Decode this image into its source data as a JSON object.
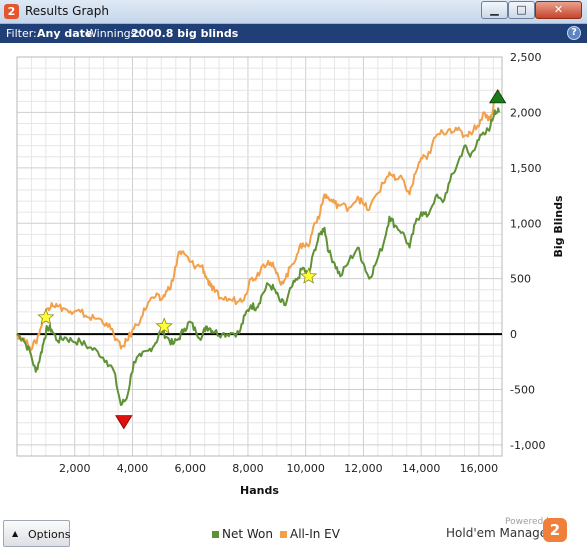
{
  "window": {
    "title": "Results Graph",
    "minimize_glyph": "▁",
    "maximize_glyph": "□",
    "close_glyph": "✕",
    "app_icon_glyph": "2"
  },
  "filter_bar": {
    "filter_label": "Filter:",
    "filter_value": "Any date",
    "winnings_label": "Winnings:",
    "winnings_value": "2000.8 big blinds",
    "help_glyph": "?"
  },
  "chart_data": {
    "type": "line",
    "xlabel": "Hands",
    "ylabel": "Big Blinds",
    "xlim": [
      0,
      16800
    ],
    "ylim": [
      -1100,
      2500
    ],
    "x_ticks": [
      2000,
      4000,
      6000,
      8000,
      10000,
      12000,
      14000,
      16000
    ],
    "x_tick_labels": [
      "2,000",
      "4,000",
      "6,000",
      "8,000",
      "10,000",
      "12,000",
      "14,000",
      "16,000"
    ],
    "y_ticks": [
      -1000,
      -500,
      0,
      500,
      1000,
      1500,
      2000,
      2500
    ],
    "y_tick_labels": [
      "-1,000",
      "-500",
      "0",
      "500",
      "1,000",
      "1,500",
      "2,000",
      "2,500"
    ],
    "grid": true,
    "legend_position": "bottom-center",
    "series": [
      {
        "name": "Net Won",
        "color": "#5f9135",
        "points": [
          [
            0,
            0
          ],
          [
            200,
            -40
          ],
          [
            450,
            -160
          ],
          [
            650,
            -340
          ],
          [
            800,
            -210
          ],
          [
            950,
            -40
          ],
          [
            1050,
            60
          ],
          [
            1200,
            40
          ],
          [
            1400,
            -60
          ],
          [
            1650,
            -30
          ],
          [
            1900,
            -60
          ],
          [
            2200,
            -70
          ],
          [
            2500,
            -120
          ],
          [
            2800,
            -160
          ],
          [
            3100,
            -240
          ],
          [
            3350,
            -330
          ],
          [
            3600,
            -640
          ],
          [
            3800,
            -580
          ],
          [
            4050,
            -250
          ],
          [
            4300,
            -200
          ],
          [
            4550,
            -150
          ],
          [
            4800,
            -80
          ],
          [
            5000,
            40
          ],
          [
            5200,
            -30
          ],
          [
            5400,
            -90
          ],
          [
            5600,
            -40
          ],
          [
            5800,
            50
          ],
          [
            6000,
            110
          ],
          [
            6200,
            20
          ],
          [
            6400,
            -30
          ],
          [
            6550,
            70
          ],
          [
            6700,
            50
          ],
          [
            6850,
            20
          ],
          [
            7100,
            0
          ],
          [
            7400,
            10
          ],
          [
            7700,
            10
          ],
          [
            7900,
            170
          ],
          [
            8100,
            260
          ],
          [
            8300,
            240
          ],
          [
            8500,
            360
          ],
          [
            8700,
            450
          ],
          [
            8900,
            410
          ],
          [
            9100,
            300
          ],
          [
            9300,
            260
          ],
          [
            9500,
            420
          ],
          [
            9700,
            490
          ],
          [
            9900,
            600
          ],
          [
            10100,
            520
          ],
          [
            10300,
            760
          ],
          [
            10500,
            900
          ],
          [
            10650,
            960
          ],
          [
            10800,
            740
          ],
          [
            11000,
            640
          ],
          [
            11200,
            520
          ],
          [
            11500,
            660
          ],
          [
            11800,
            780
          ],
          [
            12000,
            640
          ],
          [
            12200,
            500
          ],
          [
            12400,
            620
          ],
          [
            12700,
            820
          ],
          [
            12900,
            1060
          ],
          [
            13100,
            980
          ],
          [
            13350,
            920
          ],
          [
            13600,
            780
          ],
          [
            13800,
            1000
          ],
          [
            14000,
            1100
          ],
          [
            14200,
            1060
          ],
          [
            14500,
            1240
          ],
          [
            14750,
            1190
          ],
          [
            15000,
            1380
          ],
          [
            15250,
            1530
          ],
          [
            15500,
            1700
          ],
          [
            15700,
            1600
          ],
          [
            15950,
            1750
          ],
          [
            16200,
            1800
          ],
          [
            16400,
            1880
          ],
          [
            16550,
            2020
          ],
          [
            16700,
            2000
          ]
        ]
      },
      {
        "name": "All-In EV",
        "color": "#f3a04a",
        "points": [
          [
            0,
            0
          ],
          [
            200,
            -40
          ],
          [
            450,
            -120
          ],
          [
            650,
            -80
          ],
          [
            800,
            40
          ],
          [
            950,
            170
          ],
          [
            1050,
            230
          ],
          [
            1200,
            280
          ],
          [
            1400,
            250
          ],
          [
            1650,
            230
          ],
          [
            1900,
            180
          ],
          [
            2200,
            200
          ],
          [
            2500,
            150
          ],
          [
            2800,
            140
          ],
          [
            3100,
            100
          ],
          [
            3350,
            0
          ],
          [
            3600,
            -130
          ],
          [
            3800,
            -60
          ],
          [
            4050,
            50
          ],
          [
            4300,
            150
          ],
          [
            4550,
            290
          ],
          [
            4800,
            340
          ],
          [
            5000,
            310
          ],
          [
            5200,
            390
          ],
          [
            5400,
            480
          ],
          [
            5600,
            740
          ],
          [
            5800,
            720
          ],
          [
            6000,
            650
          ],
          [
            6200,
            610
          ],
          [
            6400,
            620
          ],
          [
            6550,
            520
          ],
          [
            6700,
            430
          ],
          [
            6850,
            380
          ],
          [
            7100,
            320
          ],
          [
            7400,
            310
          ],
          [
            7700,
            300
          ],
          [
            7900,
            350
          ],
          [
            8100,
            500
          ],
          [
            8300,
            520
          ],
          [
            8500,
            620
          ],
          [
            8700,
            660
          ],
          [
            8900,
            600
          ],
          [
            9100,
            470
          ],
          [
            9300,
            500
          ],
          [
            9500,
            620
          ],
          [
            9700,
            720
          ],
          [
            9900,
            820
          ],
          [
            10100,
            790
          ],
          [
            10300,
            1000
          ],
          [
            10500,
            1090
          ],
          [
            10650,
            1260
          ],
          [
            10800,
            1220
          ],
          [
            11000,
            1180
          ],
          [
            11200,
            1160
          ],
          [
            11500,
            1140
          ],
          [
            11800,
            1240
          ],
          [
            12000,
            1170
          ],
          [
            12200,
            1120
          ],
          [
            12400,
            1240
          ],
          [
            12700,
            1360
          ],
          [
            12900,
            1460
          ],
          [
            13100,
            1390
          ],
          [
            13350,
            1400
          ],
          [
            13600,
            1260
          ],
          [
            13800,
            1450
          ],
          [
            14000,
            1590
          ],
          [
            14200,
            1580
          ],
          [
            14500,
            1780
          ],
          [
            14750,
            1820
          ],
          [
            15000,
            1850
          ],
          [
            15250,
            1840
          ],
          [
            15500,
            1790
          ],
          [
            15700,
            1820
          ],
          [
            15950,
            1880
          ],
          [
            16200,
            2000
          ],
          [
            16400,
            1930
          ],
          [
            16550,
            2130
          ],
          [
            16700,
            2200
          ]
        ]
      }
    ],
    "markers": [
      {
        "type": "star",
        "x": 1000,
        "y": 150,
        "color": "#ffff33"
      },
      {
        "type": "star",
        "x": 5100,
        "y": 70,
        "color": "#ffff33"
      },
      {
        "type": "star",
        "x": 10100,
        "y": 520,
        "color": "#ffff33"
      },
      {
        "type": "triangle-down",
        "x": 3700,
        "y": -790,
        "color": "#e01010"
      },
      {
        "type": "triangle-up",
        "x": 16650,
        "y": 2140,
        "color": "#1a7a1a"
      }
    ],
    "zero_line": 0
  },
  "bottom_bar": {
    "options_label": "Options",
    "options_arrow": "▲",
    "legend_net_won": "Net Won",
    "legend_all_in_ev": "All-In EV",
    "powered_by": "Powered by",
    "brand_name": "Hold'em Manager",
    "brand_logo_glyph": "2"
  }
}
